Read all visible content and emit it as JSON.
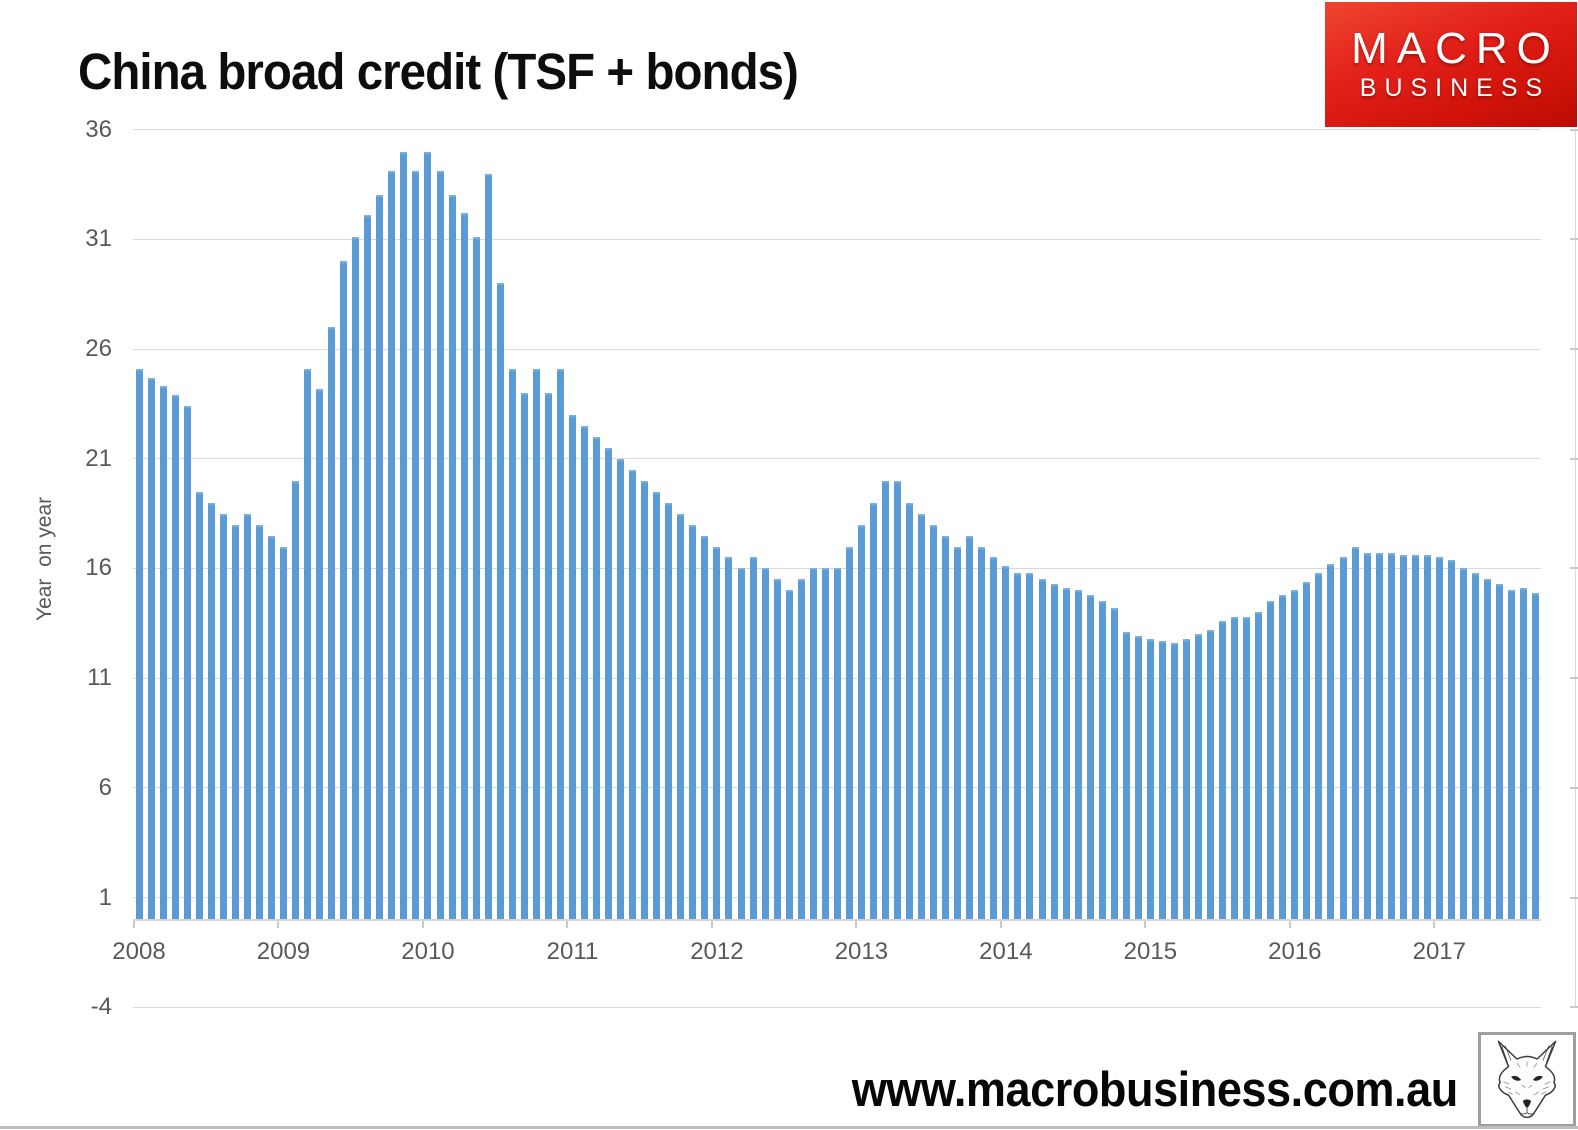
{
  "title": "China broad credit (TSF + bonds)",
  "brand_logo": {
    "top": "MACRO",
    "bottom": "BUSINESS",
    "background_red": "#d6150b",
    "text_color": "#ffffff"
  },
  "footer": {
    "url": "www.macrobusiness.com.au",
    "logo_icon": "fox-sketch-icon"
  },
  "colors": {
    "bar": "#5b9bd5",
    "gridline": "#d9d9d9",
    "axis_text": "#595959",
    "title_text": "#0d0d0d",
    "background": "#ffffff"
  },
  "chart_data": {
    "type": "bar",
    "title": "China broad credit (TSF + bonds)",
    "ylabel": "Year  on year",
    "frequency": "monthly",
    "start": "2008-01",
    "end": "2017-09",
    "ylim": [
      -4,
      36
    ],
    "baseline": 0,
    "grid": true,
    "legend_position": "none",
    "y_ticks": [
      36,
      31,
      26,
      21,
      16,
      11,
      6,
      1,
      -4
    ],
    "x_year_labels": [
      "2008",
      "2009",
      "2010",
      "2011",
      "2012",
      "2013",
      "2014",
      "2015",
      "2016",
      "2017"
    ],
    "values": [
      25.1,
      24.7,
      24.3,
      23.9,
      23.4,
      19.5,
      19.0,
      18.5,
      18.0,
      18.5,
      18.0,
      17.5,
      17.0,
      20.0,
      25.1,
      24.2,
      27.0,
      30.0,
      31.1,
      32.1,
      33.0,
      34.1,
      35.0,
      34.1,
      35.0,
      34.1,
      33.0,
      32.2,
      31.1,
      34.0,
      29.0,
      25.1,
      24.0,
      25.1,
      24.0,
      25.1,
      23.0,
      22.5,
      22.0,
      21.5,
      21.0,
      20.5,
      20.0,
      19.5,
      19.0,
      18.5,
      18.0,
      17.5,
      17.0,
      16.5,
      16.0,
      16.5,
      16.0,
      15.5,
      15.0,
      15.5,
      16.0,
      16.0,
      16.0,
      17.0,
      18.0,
      19.0,
      20.0,
      20.0,
      19.0,
      18.5,
      18.0,
      17.5,
      17.0,
      17.5,
      17.0,
      16.5,
      16.1,
      15.8,
      15.8,
      15.5,
      15.3,
      15.1,
      15.0,
      14.8,
      14.5,
      14.2,
      13.1,
      12.9,
      12.8,
      12.7,
      12.6,
      12.8,
      13.0,
      13.2,
      13.6,
      13.8,
      13.8,
      14.0,
      14.5,
      14.8,
      15.0,
      15.4,
      15.8,
      16.2,
      16.5,
      17.0,
      16.7,
      16.7,
      16.7,
      16.6,
      16.6,
      16.6,
      16.5,
      16.4,
      16.0,
      15.8,
      15.5,
      15.3,
      15.0,
      15.1,
      14.9
    ]
  }
}
